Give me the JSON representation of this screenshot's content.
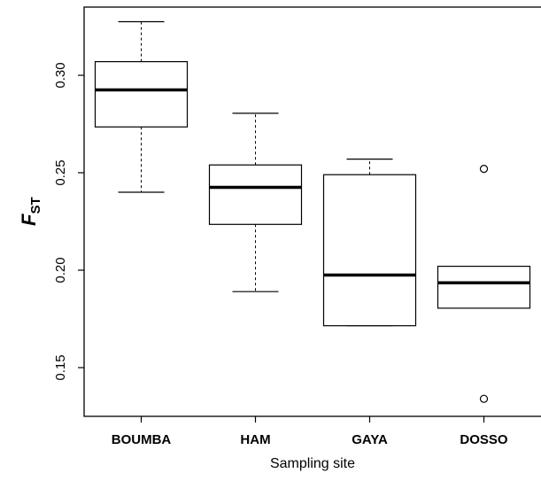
{
  "chart_data": {
    "type": "boxplot",
    "title": "",
    "xlabel": "Sampling site",
    "ylabel": {
      "main": "F",
      "sub": "ST"
    },
    "ylim": [
      0.125,
      0.335
    ],
    "yticks": [
      0.15,
      0.2,
      0.25,
      0.3
    ],
    "ytick_labels": [
      "0.15",
      "0.20",
      "0.25",
      "0.30"
    ],
    "categories": [
      "BOUMBA",
      "HAM",
      "GAYA",
      "DOSSO"
    ],
    "boxes": [
      {
        "category": "BOUMBA",
        "whisker_low": 0.24,
        "q1": 0.2735,
        "median": 0.2925,
        "q3": 0.307,
        "whisker_high": 0.3275,
        "outliers": []
      },
      {
        "category": "HAM",
        "whisker_low": 0.189,
        "q1": 0.2235,
        "median": 0.2425,
        "q3": 0.254,
        "whisker_high": 0.2805,
        "outliers": []
      },
      {
        "category": "GAYA",
        "whisker_low": 0.1715,
        "q1": 0.1715,
        "median": 0.1975,
        "q3": 0.249,
        "whisker_high": 0.257,
        "outliers": []
      },
      {
        "category": "DOSSO",
        "whisker_low": 0.1805,
        "q1": 0.1805,
        "median": 0.1935,
        "q3": 0.202,
        "whisker_high": 0.202,
        "outliers": [
          0.252,
          0.134
        ]
      }
    ],
    "grid": false,
    "legend": "none"
  }
}
